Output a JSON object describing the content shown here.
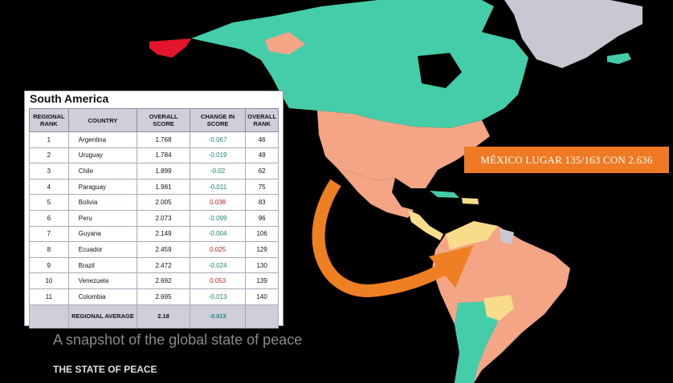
{
  "colors": {
    "background": "#000000",
    "teal_region": "#45cca8",
    "salmon_region": "#f4a585",
    "yellow_region": "#f8dc8c",
    "red_region": "#e3142b",
    "grey_region": "#c8c8d2",
    "callout": "#f07a24",
    "arrow": "#ee7f22",
    "positive_change": "#d02020",
    "negative_change": "#1a8a7a"
  },
  "table": {
    "title": "South America",
    "headers": {
      "regional_rank": "REGIONAL RANK",
      "country": "COUNTRY",
      "overall_score": "OVERALL SCORE",
      "change_in_score": "CHANGE IN SCORE",
      "overall_rank": "OVERALL RANK"
    },
    "rows": [
      {
        "regional_rank": "1",
        "country": "Argentina",
        "overall_score": "1.768",
        "change": "-0.067",
        "overall_rank": "46"
      },
      {
        "regional_rank": "2",
        "country": "Uruguay",
        "overall_score": "1.784",
        "change": "-0.019",
        "overall_rank": "48"
      },
      {
        "regional_rank": "3",
        "country": "Chile",
        "overall_score": "1.899",
        "change": "-0.02",
        "overall_rank": "62"
      },
      {
        "regional_rank": "4",
        "country": "Paraguay",
        "overall_score": "1.981",
        "change": "-0.011",
        "overall_rank": "75"
      },
      {
        "regional_rank": "5",
        "country": "Bolivia",
        "overall_score": "2.005",
        "change": "0.038",
        "overall_rank": "83"
      },
      {
        "regional_rank": "6",
        "country": "Peru",
        "overall_score": "2.073",
        "change": "-0.099",
        "overall_rank": "96"
      },
      {
        "regional_rank": "7",
        "country": "Guyana",
        "overall_score": "2.149",
        "change": "-0.004",
        "overall_rank": "106"
      },
      {
        "regional_rank": "8",
        "country": "Ecuador",
        "overall_score": "2.459",
        "change": "0.025",
        "overall_rank": "129"
      },
      {
        "regional_rank": "9",
        "country": "Brazil",
        "overall_score": "2.472",
        "change": "-0.024",
        "overall_rank": "130"
      },
      {
        "regional_rank": "10",
        "country": "Venezuela",
        "overall_score": "2.692",
        "change": "0.053",
        "overall_rank": "139"
      },
      {
        "regional_rank": "11",
        "country": "Colombia",
        "overall_score": "2.695",
        "change": "-0.013",
        "overall_rank": "140"
      }
    ],
    "average": {
      "label": "REGIONAL AVERAGE",
      "overall_score": "2.18",
      "change": "-0.013"
    }
  },
  "callout_text": "MÉXICO LUGAR 135/163 CON 2.636",
  "snapshot_text": "A snapshot of the global state of peace",
  "state_heading": "THE STATE OF PEACE"
}
